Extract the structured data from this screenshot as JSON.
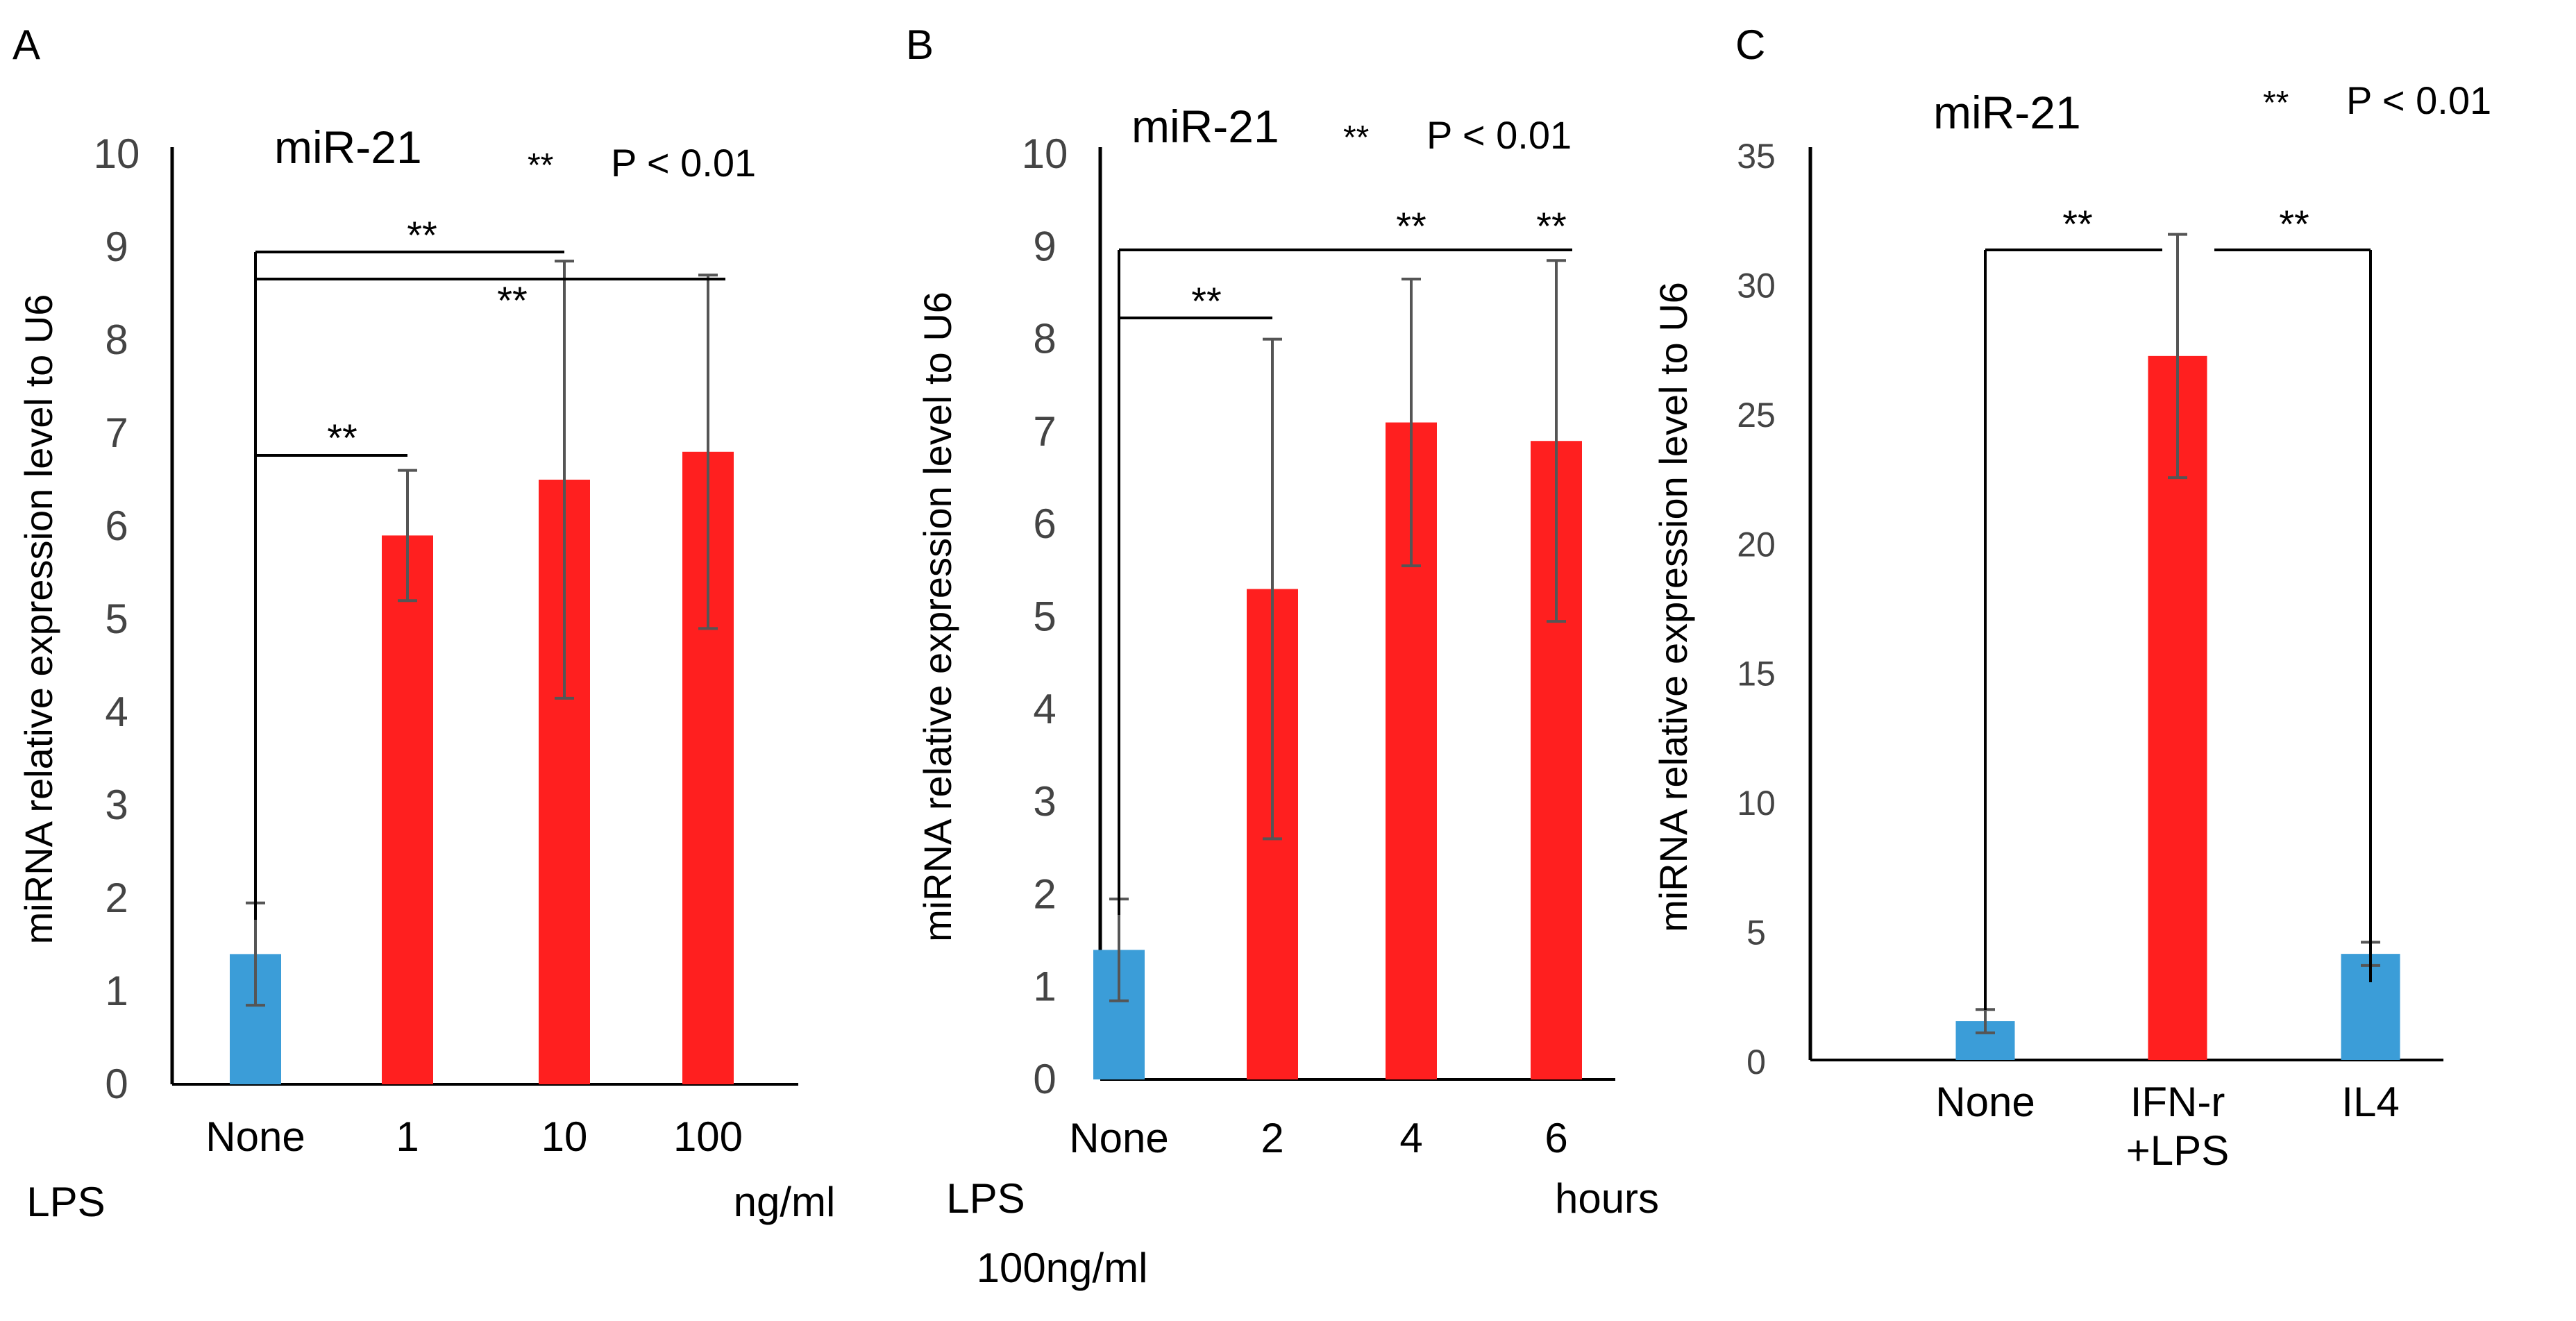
{
  "chart_data": [
    {
      "panel": "A",
      "type": "bar",
      "title": "miR-21",
      "significance_legend": {
        "symbol": "**",
        "text": "P < 0.01"
      },
      "ylabel": "miRNA relative expression level to U6",
      "xlabel": "ng/ml",
      "x_prefix": "LPS",
      "x_prefix_line2": "",
      "ylim": [
        0,
        10
      ],
      "yticks": [
        "0",
        "1",
        "2",
        "3",
        "4",
        "5",
        "6",
        "7",
        "8",
        "9",
        "10"
      ],
      "categories": [
        "None",
        "1",
        "10",
        "100"
      ],
      "values": [
        1.4,
        5.9,
        6.5,
        6.8
      ],
      "errors": [
        0.55,
        0.7,
        2.35,
        1.9
      ],
      "colors": [
        "#3b9dd8",
        "#ff1f1f",
        "#ff1f1f",
        "#ff1f1f"
      ],
      "significance": [
        {
          "from": 0,
          "to": 1,
          "label": "**"
        },
        {
          "from": 0,
          "to": 2,
          "label": "**"
        },
        {
          "from": 0,
          "to": 3,
          "label": "**"
        }
      ]
    },
    {
      "panel": "B",
      "type": "bar",
      "title": "miR-21",
      "significance_legend": {
        "symbol": "**",
        "text": "P < 0.01"
      },
      "ylabel": "miRNA relative expression level to U6",
      "xlabel": "hours",
      "x_prefix": "LPS",
      "x_prefix_line2": "100ng/ml",
      "ylim": [
        0,
        10
      ],
      "yticks": [
        "0",
        "1",
        "2",
        "3",
        "4",
        "5",
        "6",
        "7",
        "8",
        "9",
        "10"
      ],
      "categories": [
        "None",
        "2",
        "4",
        "6"
      ],
      "values": [
        1.4,
        5.3,
        7.1,
        6.9
      ],
      "errors": [
        0.55,
        2.7,
        1.55,
        1.95
      ],
      "colors": [
        "#3b9dd8",
        "#ff1f1f",
        "#ff1f1f",
        "#ff1f1f"
      ],
      "significance": [
        {
          "from": 0,
          "to": 1,
          "label": "**"
        },
        {
          "from": 0,
          "to": 3,
          "label": "**"
        }
      ],
      "extra_stars": [
        {
          "index": 2,
          "label": "**"
        }
      ]
    },
    {
      "panel": "C",
      "type": "bar",
      "title": "miR-21",
      "significance_legend": {
        "symbol": "**",
        "text": "P < 0.01"
      },
      "ylabel": "miRNA relative expression level to U6",
      "xlabel": "",
      "x_prefix": "",
      "x_prefix_line2": "",
      "ylim": [
        0,
        35
      ],
      "yticks": [
        "0",
        "5",
        "10",
        "15",
        "20",
        "25",
        "30",
        "35"
      ],
      "categories": [
        "None",
        "IFN-r\n+LPS",
        "IL4"
      ],
      "values": [
        1.5,
        27.2,
        4.1
      ],
      "errors": [
        0.45,
        4.7,
        0.45
      ],
      "colors": [
        "#3b9dd8",
        "#ff1f1f",
        "#3b9dd8"
      ],
      "significance": [
        {
          "from": 0,
          "to": 1,
          "label": "**"
        },
        {
          "from": 1,
          "to": 2,
          "label": "**"
        }
      ]
    }
  ]
}
